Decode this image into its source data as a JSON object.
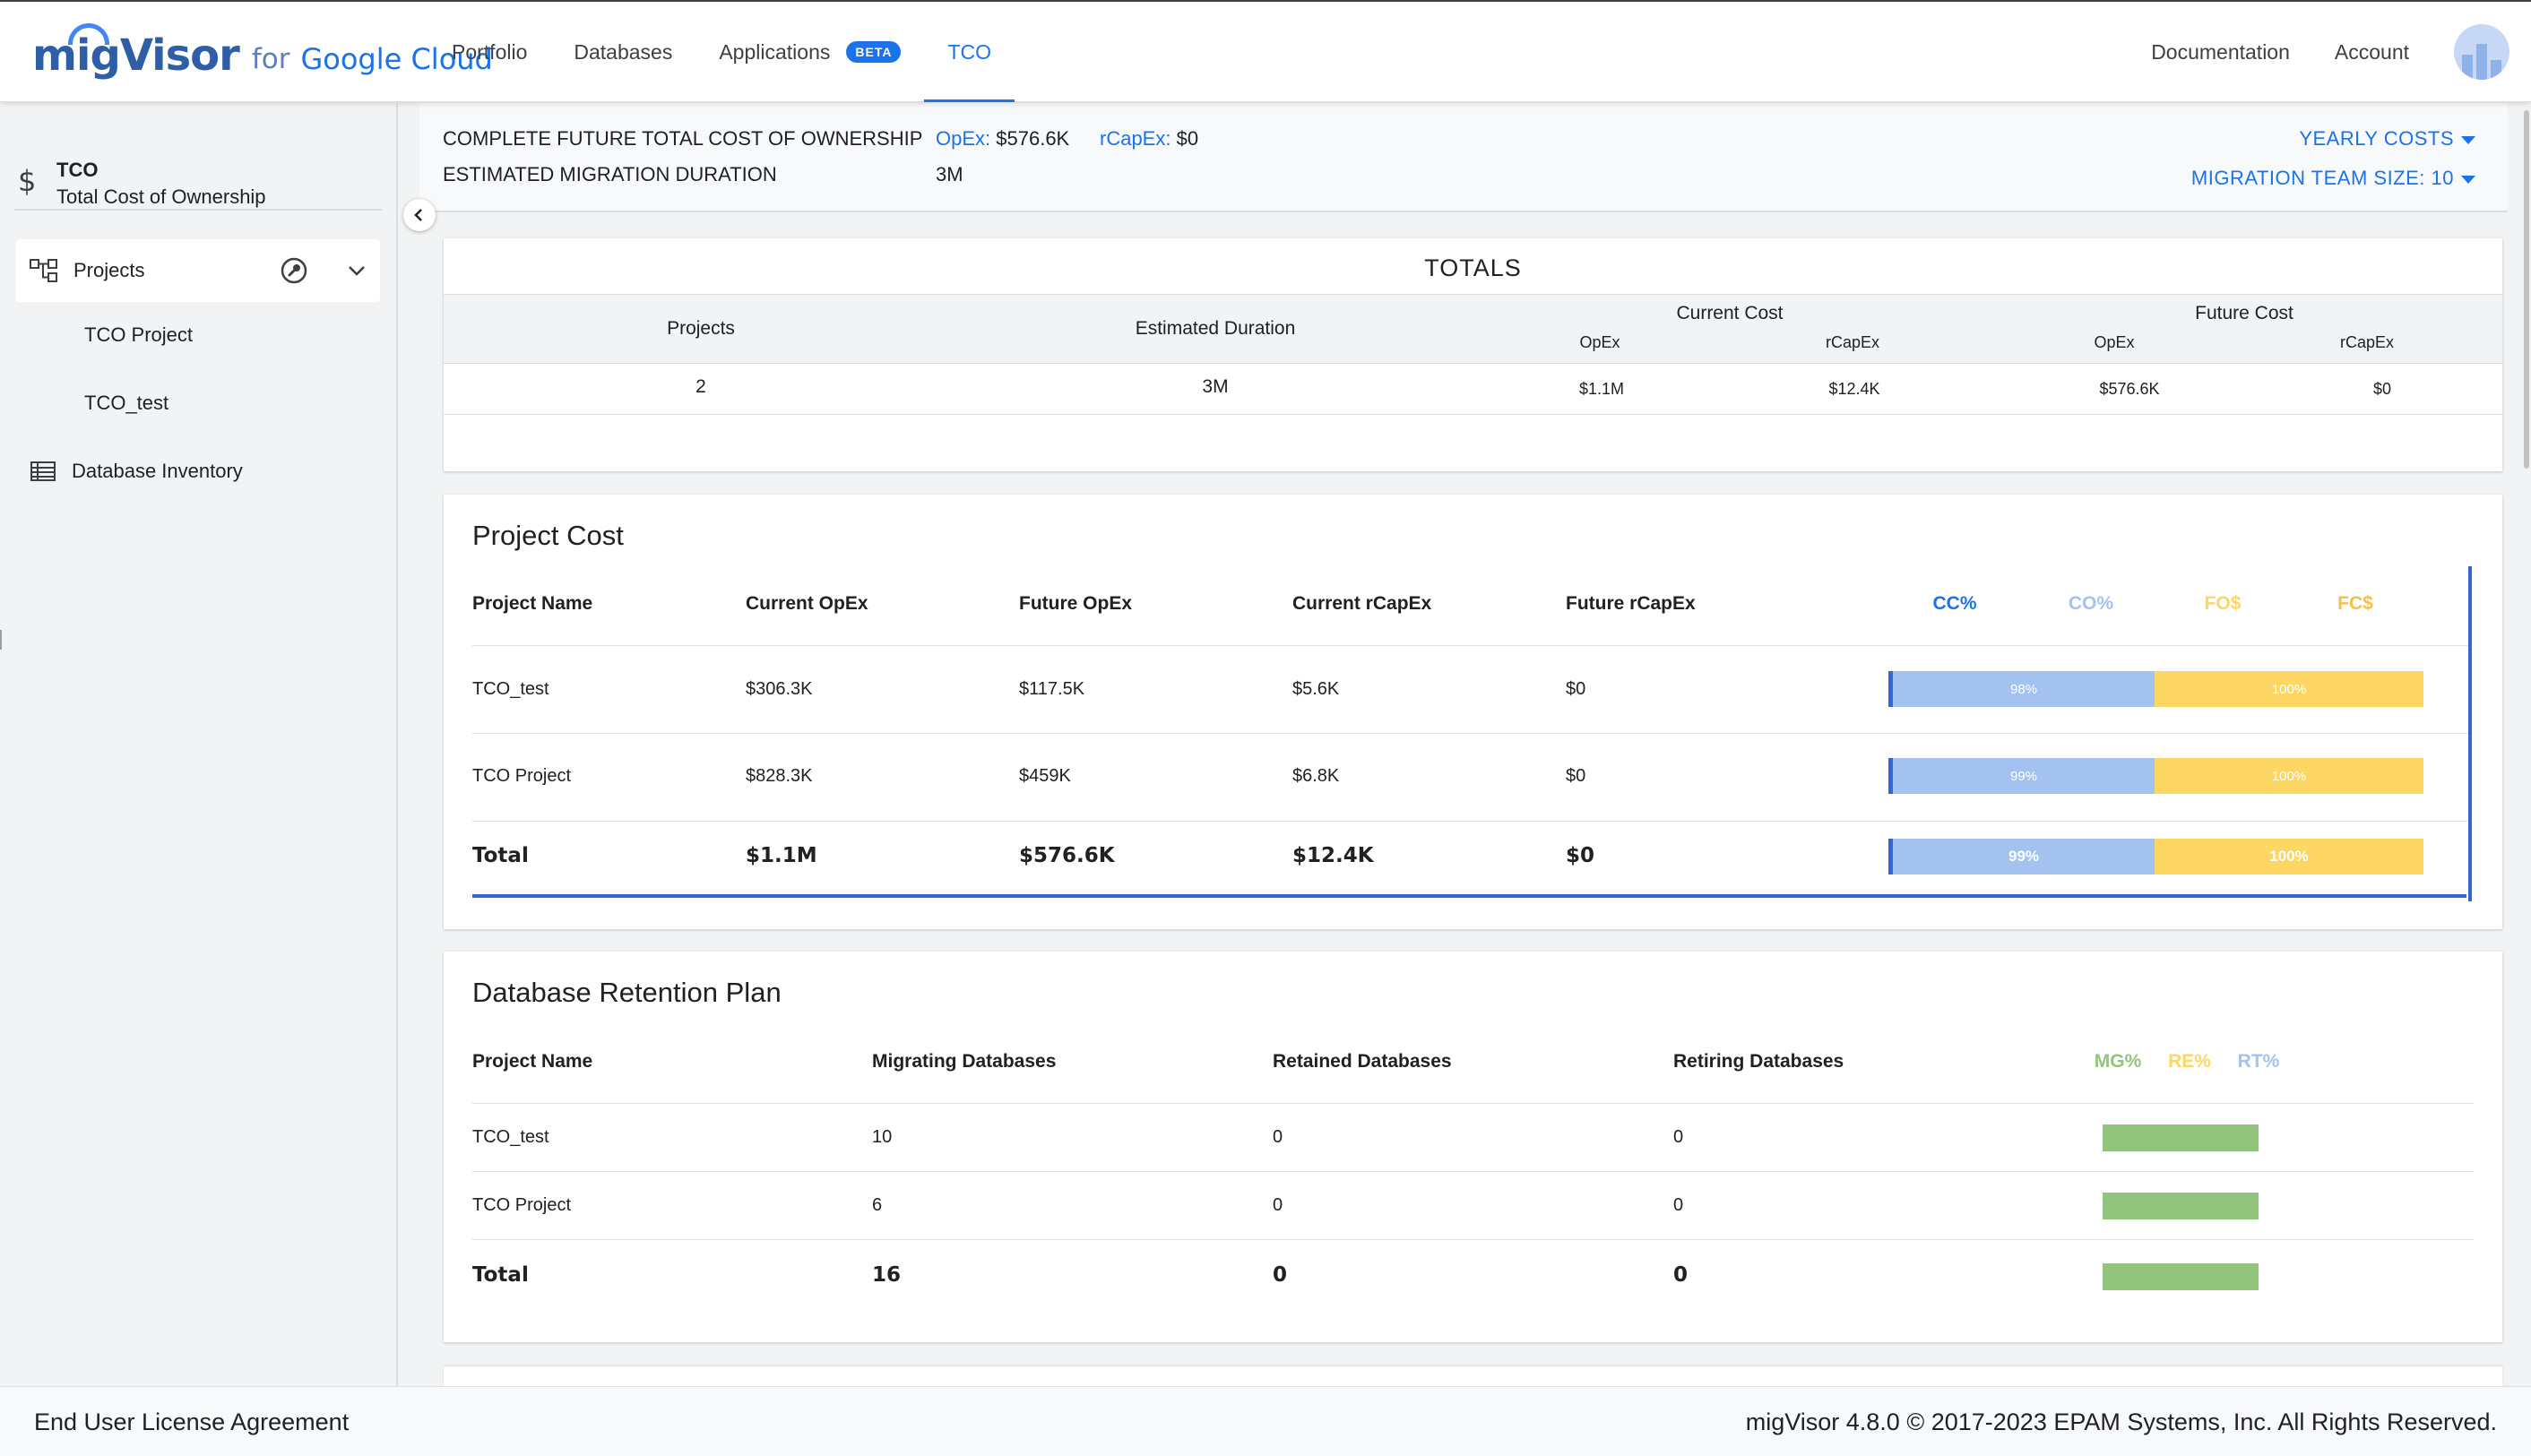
{
  "header": {
    "brand": {
      "mig": "migVisor",
      "for": "for",
      "cloud": "Google Cloud"
    },
    "nav": [
      {
        "label": "Portfolio"
      },
      {
        "label": "Databases"
      },
      {
        "label": "Applications",
        "badge": "BETA"
      },
      {
        "label": "TCO",
        "active": true
      }
    ],
    "documentation": "Documentation",
    "account": "Account"
  },
  "sidebar": {
    "icon": "dollar-icon",
    "title": "TCO",
    "subtitle": "Total Cost of Ownership",
    "projects_label": "Projects",
    "projects": [
      "TCO Project",
      "TCO_test"
    ],
    "database_inventory": "Database Inventory"
  },
  "summary": {
    "complete_label": "COMPLETE FUTURE TOTAL COST OF OWNERSHIP",
    "opex_label": "OpEx:",
    "opex_value": "$576.6K",
    "rcapex_label": "rCapEx:",
    "rcapex_value": "$0",
    "duration_label": "ESTIMATED MIGRATION DURATION",
    "duration_value": "3M",
    "yearly_costs": "YEARLY COSTS",
    "team_size": "MIGRATION TEAM SIZE: 10"
  },
  "totals": {
    "title": "TOTALS",
    "headers": {
      "projects": "Projects",
      "duration": "Estimated Duration",
      "current_cost": "Current Cost",
      "future_cost": "Future Cost",
      "opex": "OpEx",
      "rcapex": "rCapEx"
    },
    "values": {
      "projects": "2",
      "duration": "3M",
      "current_opex": "$1.1M",
      "current_rcapex": "$12.4K",
      "future_opex": "$576.6K",
      "future_rcapex": "$0"
    }
  },
  "project_cost": {
    "title": "Project Cost",
    "columns": [
      "Project Name",
      "Current OpEx",
      "Future OpEx",
      "Current rCapEx",
      "Future rCapEx"
    ],
    "pct_headers": [
      "CC%",
      "CO%",
      "FO$",
      "FC$"
    ],
    "rows": [
      {
        "name": "TCO_test",
        "current_opex": "$306.3K",
        "future_opex": "$117.5K",
        "current_rcapex": "$5.6K",
        "future_rcapex": "$0",
        "cc_pct": "98%",
        "fc_pct": "100%"
      },
      {
        "name": "TCO Project",
        "current_opex": "$828.3K",
        "future_opex": "$459K",
        "current_rcapex": "$6.8K",
        "future_rcapex": "$0",
        "cc_pct": "99%",
        "fc_pct": "100%"
      }
    ],
    "total": {
      "name": "Total",
      "current_opex": "$1.1M",
      "future_opex": "$576.6K",
      "current_rcapex": "$12.4K",
      "future_rcapex": "$0",
      "cc_pct": "99%",
      "fc_pct": "100%"
    }
  },
  "retention": {
    "title": "Database Retention Plan",
    "columns": [
      "Project Name",
      "Migrating Databases",
      "Retained Databases",
      "Retiring Databases"
    ],
    "pct_headers": [
      "MG%",
      "RE%",
      "RT%"
    ],
    "rows": [
      {
        "name": "TCO_test",
        "migrating": "10",
        "retained": "0",
        "retiring": "0",
        "mg_fraction": 1.0
      },
      {
        "name": "TCO Project",
        "migrating": "6",
        "retained": "0",
        "retiring": "0",
        "mg_fraction": 1.0
      }
    ],
    "total": {
      "name": "Total",
      "migrating": "16",
      "retained": "0",
      "retiring": "0",
      "mg_fraction": 1.0
    }
  },
  "footer": {
    "eula": "End User License Agreement",
    "copyright": "migVisor 4.8.0 © 2017-2023 EPAM Systems, Inc. All Rights Reserved."
  },
  "colors": {
    "accent": "#1a73e8",
    "current_cost": "#a4c2f0",
    "future_cost": "#fdd663",
    "migrating": "#93c47d"
  }
}
